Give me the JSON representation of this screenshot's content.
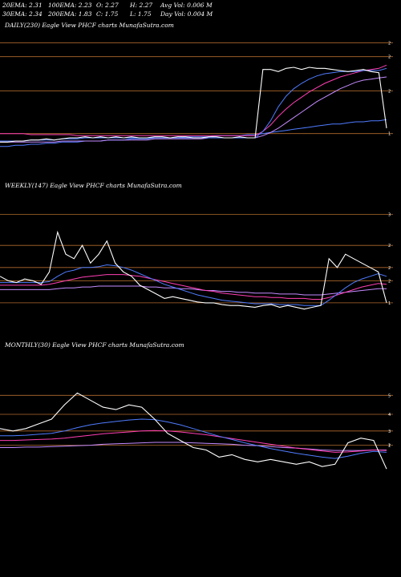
{
  "stats": {
    "row1": [
      "20EMA: 2.31",
      "100EMA: 2.23",
      "O: 2.27",
      "H: 2.27",
      "Avg Vol: 0.006  M"
    ],
    "row2": [
      "30EMA: 2.34",
      "200EMA: 1.83",
      "C: 1.75",
      "L: 1.75",
      "Day Vol: 0.004  M"
    ]
  },
  "colors": {
    "background": "#000000",
    "price": "#ffffff",
    "ema_fast": "#4f7cff",
    "ema_slow": "#ff3fb4",
    "ema_mid": "#c58bff",
    "level_lines": "#b06a2e"
  },
  "chart_data": [
    {
      "type": "line",
      "title": "DAILY(230) Eagle   View  PHCF charts MunafaSutra.com",
      "ticks": [
        "2",
        "2",
        "2",
        "1"
      ],
      "series": [
        {
          "values": [
            1.62,
            1.62,
            1.63,
            1.63,
            1.64,
            1.64,
            1.65,
            1.64,
            1.65,
            1.66,
            1.66,
            1.67,
            1.66,
            1.67,
            1.66,
            1.67,
            1.66,
            1.67,
            1.66,
            1.66,
            1.67,
            1.67,
            1.66,
            1.67,
            1.67,
            1.66,
            1.66,
            1.67,
            1.67,
            1.66,
            1.66,
            1.67,
            1.66,
            1.66,
            2.3,
            2.3,
            2.28,
            2.31,
            2.32,
            2.3,
            2.32,
            2.31,
            2.31,
            2.3,
            2.29,
            2.28,
            2.29,
            2.3,
            2.28,
            2.27,
            1.75
          ]
        },
        {
          "values": [
            1.63,
            1.63,
            1.63,
            1.63,
            1.64,
            1.64,
            1.64,
            1.64,
            1.65,
            1.65,
            1.65,
            1.66,
            1.66,
            1.66,
            1.66,
            1.66,
            1.66,
            1.66,
            1.66,
            1.66,
            1.66,
            1.66,
            1.66,
            1.66,
            1.66,
            1.66,
            1.66,
            1.66,
            1.66,
            1.66,
            1.66,
            1.66,
            1.66,
            1.66,
            1.72,
            1.82,
            1.95,
            2.05,
            2.12,
            2.17,
            2.21,
            2.24,
            2.26,
            2.27,
            2.28,
            2.28,
            2.28,
            2.29,
            2.29,
            2.29,
            2.31
          ]
        },
        {
          "values": [
            1.7,
            1.7,
            1.7,
            1.7,
            1.69,
            1.69,
            1.69,
            1.69,
            1.69,
            1.69,
            1.68,
            1.68,
            1.68,
            1.68,
            1.68,
            1.68,
            1.68,
            1.68,
            1.68,
            1.68,
            1.68,
            1.68,
            1.68,
            1.68,
            1.68,
            1.68,
            1.68,
            1.68,
            1.68,
            1.68,
            1.68,
            1.68,
            1.68,
            1.68,
            1.72,
            1.78,
            1.86,
            1.93,
            1.99,
            2.04,
            2.09,
            2.13,
            2.17,
            2.2,
            2.23,
            2.25,
            2.27,
            2.29,
            2.3,
            2.31,
            2.34
          ]
        },
        {
          "values": [
            1.62,
            1.62,
            1.62,
            1.62,
            1.62,
            1.62,
            1.62,
            1.62,
            1.63,
            1.63,
            1.63,
            1.63,
            1.63,
            1.63,
            1.64,
            1.64,
            1.64,
            1.64,
            1.64,
            1.64,
            1.65,
            1.65,
            1.65,
            1.65,
            1.65,
            1.65,
            1.65,
            1.66,
            1.66,
            1.66,
            1.66,
            1.66,
            1.66,
            1.66,
            1.68,
            1.71,
            1.75,
            1.8,
            1.85,
            1.9,
            1.95,
            2.0,
            2.04,
            2.08,
            2.12,
            2.15,
            2.18,
            2.2,
            2.21,
            2.22,
            2.23
          ]
        },
        {
          "values": [
            1.58,
            1.58,
            1.59,
            1.59,
            1.6,
            1.6,
            1.61,
            1.61,
            1.62,
            1.62,
            1.62,
            1.63,
            1.63,
            1.63,
            1.64,
            1.64,
            1.64,
            1.65,
            1.65,
            1.65,
            1.66,
            1.66,
            1.66,
            1.66,
            1.67,
            1.67,
            1.67,
            1.67,
            1.68,
            1.68,
            1.68,
            1.68,
            1.69,
            1.69,
            1.7,
            1.71,
            1.72,
            1.73,
            1.74,
            1.75,
            1.76,
            1.77,
            1.78,
            1.79,
            1.79,
            1.8,
            1.81,
            1.81,
            1.82,
            1.82,
            1.83
          ]
        }
      ],
      "levels": [
        2.55,
        2.42,
        2.1,
        1.7
      ],
      "ylim": [
        1.45,
        2.65
      ]
    },
    {
      "type": "line",
      "title": "WEEKLY(147) Eagle   View  PHCF charts MunafaSutra.com",
      "ticks": [
        "3",
        "2",
        "2",
        "2",
        "1"
      ],
      "series": [
        {
          "values": [
            2.05,
            2.0,
            1.98,
            2.02,
            2.0,
            1.96,
            2.1,
            2.55,
            2.3,
            2.25,
            2.4,
            2.2,
            2.3,
            2.45,
            2.2,
            2.1,
            2.05,
            1.95,
            1.9,
            1.85,
            1.8,
            1.82,
            1.8,
            1.78,
            1.76,
            1.75,
            1.75,
            1.73,
            1.72,
            1.72,
            1.71,
            1.7,
            1.72,
            1.73,
            1.7,
            1.72,
            1.7,
            1.68,
            1.7,
            1.72,
            2.25,
            2.15,
            2.3,
            2.25,
            2.2,
            2.15,
            2.1,
            1.75
          ]
        },
        {
          "values": [
            1.98,
            1.98,
            1.98,
            1.98,
            1.98,
            1.98,
            1.99,
            2.05,
            2.1,
            2.12,
            2.15,
            2.15,
            2.16,
            2.18,
            2.17,
            2.15,
            2.12,
            2.08,
            2.04,
            2.0,
            1.96,
            1.93,
            1.9,
            1.87,
            1.84,
            1.82,
            1.8,
            1.78,
            1.77,
            1.76,
            1.75,
            1.74,
            1.74,
            1.74,
            1.73,
            1.73,
            1.73,
            1.72,
            1.72,
            1.72,
            1.78,
            1.85,
            1.92,
            1.98,
            2.02,
            2.05,
            2.08,
            2.05
          ]
        },
        {
          "values": [
            1.95,
            1.95,
            1.95,
            1.95,
            1.95,
            1.95,
            1.96,
            1.98,
            2.0,
            2.02,
            2.04,
            2.05,
            2.06,
            2.07,
            2.07,
            2.07,
            2.06,
            2.05,
            2.03,
            2.01,
            1.99,
            1.97,
            1.95,
            1.93,
            1.91,
            1.89,
            1.88,
            1.86,
            1.85,
            1.84,
            1.83,
            1.82,
            1.82,
            1.81,
            1.81,
            1.8,
            1.8,
            1.8,
            1.79,
            1.79,
            1.81,
            1.84,
            1.87,
            1.9,
            1.93,
            1.95,
            1.97,
            1.96
          ]
        },
        {
          "values": [
            1.9,
            1.9,
            1.9,
            1.9,
            1.9,
            1.9,
            1.9,
            1.91,
            1.92,
            1.92,
            1.93,
            1.93,
            1.94,
            1.94,
            1.94,
            1.94,
            1.94,
            1.94,
            1.93,
            1.93,
            1.92,
            1.92,
            1.91,
            1.91,
            1.9,
            1.89,
            1.89,
            1.88,
            1.88,
            1.87,
            1.87,
            1.86,
            1.86,
            1.86,
            1.85,
            1.85,
            1.85,
            1.84,
            1.84,
            1.84,
            1.85,
            1.86,
            1.87,
            1.88,
            1.89,
            1.9,
            1.91,
            1.91
          ]
        }
      ],
      "levels": [
        2.75,
        2.4,
        2.15,
        2.0,
        1.75
      ],
      "ylim": [
        1.55,
        3.0
      ]
    },
    {
      "type": "line",
      "title": "MONTHLY(30) Eagle   View  PHCF charts MunafaSutra.com",
      "ticks": [
        "5",
        "4",
        "3",
        "2",
        "1"
      ],
      "series": [
        {
          "values": [
            2.6,
            2.55,
            2.6,
            2.7,
            2.8,
            3.1,
            3.35,
            3.2,
            3.05,
            3.0,
            3.1,
            3.05,
            2.8,
            2.5,
            2.35,
            2.2,
            2.15,
            2.0,
            2.05,
            1.95,
            1.9,
            1.95,
            1.9,
            1.85,
            1.9,
            1.8,
            1.85,
            2.3,
            2.4,
            2.35,
            1.75
          ]
        },
        {
          "values": [
            2.45,
            2.45,
            2.46,
            2.48,
            2.5,
            2.55,
            2.62,
            2.68,
            2.72,
            2.75,
            2.78,
            2.8,
            2.79,
            2.74,
            2.68,
            2.6,
            2.52,
            2.44,
            2.37,
            2.3,
            2.24,
            2.18,
            2.13,
            2.08,
            2.04,
            2.0,
            1.97,
            2.02,
            2.08,
            2.12,
            2.1
          ]
        },
        {
          "values": [
            2.35,
            2.35,
            2.36,
            2.37,
            2.38,
            2.4,
            2.43,
            2.46,
            2.49,
            2.51,
            2.53,
            2.55,
            2.56,
            2.55,
            2.53,
            2.5,
            2.47,
            2.43,
            2.39,
            2.35,
            2.31,
            2.27,
            2.23,
            2.19,
            2.16,
            2.13,
            2.1,
            2.11,
            2.13,
            2.15,
            2.14
          ]
        },
        {
          "values": [
            2.2,
            2.2,
            2.21,
            2.21,
            2.22,
            2.23,
            2.24,
            2.25,
            2.27,
            2.28,
            2.29,
            2.3,
            2.31,
            2.31,
            2.31,
            2.3,
            2.29,
            2.28,
            2.27,
            2.25,
            2.24,
            2.22,
            2.2,
            2.19,
            2.17,
            2.15,
            2.14,
            2.14,
            2.14,
            2.15,
            2.15
          ]
        }
      ],
      "levels": [
        3.3,
        2.9,
        2.55,
        2.25
      ],
      "ylim": [
        1.5,
        4.2
      ]
    }
  ]
}
